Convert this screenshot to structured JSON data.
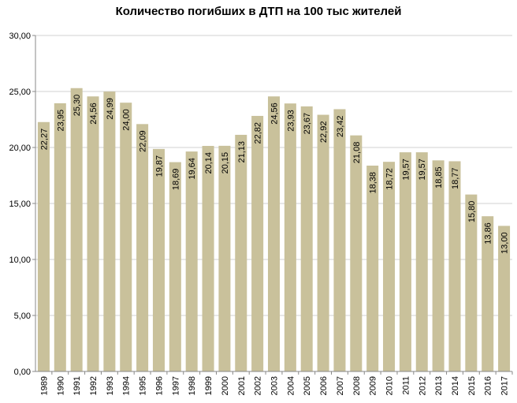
{
  "chart_data": {
    "type": "bar",
    "title": "Количество погибших в ДТП на 100 тыс жителей",
    "xlabel": "",
    "ylabel": "",
    "ylim": [
      0,
      30
    ],
    "yticks": [
      "0,00",
      "5,00",
      "10,00",
      "15,00",
      "20,00",
      "25,00",
      "30,00"
    ],
    "grid": true,
    "legend": "none",
    "bar_color": "#c9c19b",
    "gridline_color": "#d0d0d0",
    "categories": [
      "1989",
      "1990",
      "1991",
      "1992",
      "1993",
      "1994",
      "1995",
      "1996",
      "1997",
      "1998",
      "1999",
      "2000",
      "2001",
      "2002",
      "2003",
      "2004",
      "2005",
      "2006",
      "2007",
      "2008",
      "2009",
      "2010",
      "2011",
      "2012",
      "2013",
      "2014",
      "2015",
      "2016",
      "2017"
    ],
    "values": [
      22.27,
      23.95,
      25.3,
      24.56,
      24.99,
      24.0,
      22.09,
      19.87,
      18.69,
      19.64,
      20.14,
      20.15,
      21.13,
      22.82,
      24.56,
      23.93,
      23.67,
      22.92,
      23.42,
      21.08,
      18.38,
      18.72,
      19.57,
      19.57,
      18.85,
      18.77,
      15.8,
      13.86,
      13.0
    ],
    "value_labels": [
      "22,27",
      "23,95",
      "25,30",
      "24,56",
      "24,99",
      "24,00",
      "22,09",
      "19,87",
      "18,69",
      "19,64",
      "20,14",
      "20,15",
      "21,13",
      "22,82",
      "24,56",
      "23,93",
      "23,67",
      "22,92",
      "23,42",
      "21,08",
      "18,38",
      "18,72",
      "19,57",
      "19,57",
      "18,85",
      "18,77",
      "15,80",
      "13,86",
      "13,00"
    ]
  }
}
